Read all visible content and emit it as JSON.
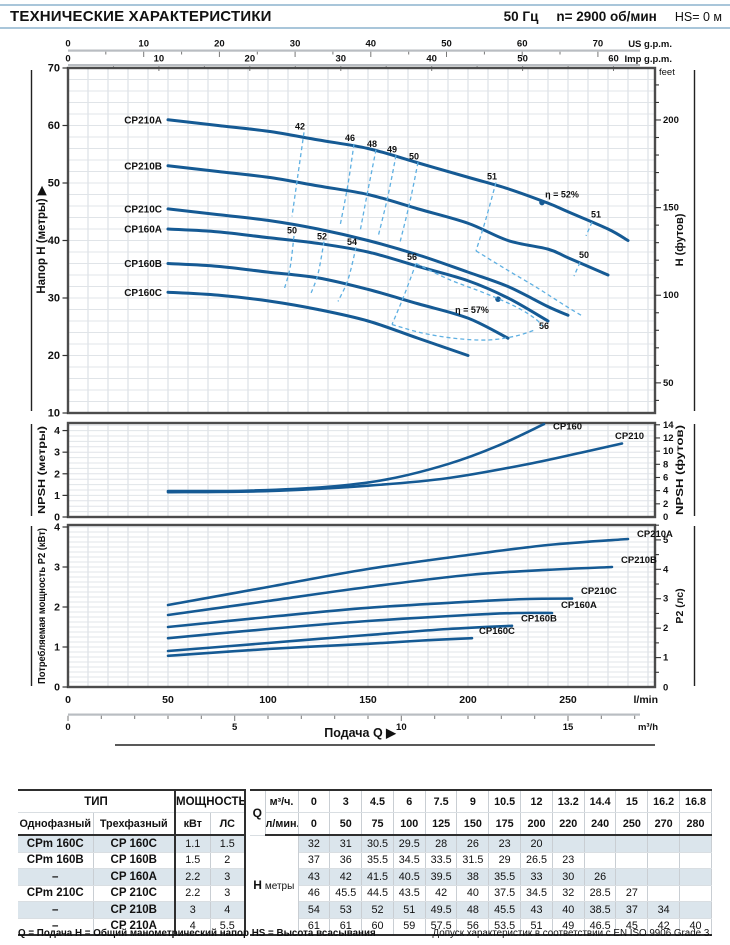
{
  "header": {
    "title": "ТЕХНИЧЕСКИЕ ХАРАКТЕРИСТИКИ",
    "frequency": "50 Гц",
    "speed": "n= 2900  об/мин",
    "suction": "HS= 0 м"
  },
  "chart_data": {
    "type": "line",
    "flow_axis": {
      "us_gpm": {
        "label": "US g.p.m.",
        "ticks": [
          0,
          10,
          20,
          30,
          40,
          50,
          60,
          70
        ],
        "lmin_per_unit": 3.785
      },
      "imp_gpm": {
        "label": "Imp g.p.m.",
        "ticks": [
          0,
          10,
          20,
          30,
          40,
          50,
          60
        ],
        "lmin_per_unit": 4.546
      },
      "lmin": {
        "label": "l/min",
        "ticks": [
          0,
          50,
          100,
          150,
          200,
          250
        ]
      },
      "m3h": {
        "label": "m³/h",
        "ticks": [
          0,
          5,
          10,
          15
        ],
        "lmin_per_unit": 16.667
      },
      "xlabel": "Подача Q  ▶"
    },
    "head_chart": {
      "ylabel_left": "Напор H  (метры)  ▶",
      "ylabel_right": "Н  (футов)",
      "right_unit_label": "feet",
      "x_domain": [
        0,
        293.5
      ],
      "y_domain": [
        10,
        70
      ],
      "yticks": [
        70,
        60,
        50,
        40,
        30,
        20,
        10
      ],
      "right_ticks_ft": [
        50,
        100,
        150,
        200
      ],
      "series": [
        {
          "name": "CP210A",
          "q": [
            50,
            75,
            100,
            125,
            150,
            175,
            200,
            220,
            240,
            250,
            270,
            280
          ],
          "v": [
            61,
            60,
            59,
            57.5,
            56,
            53.5,
            51,
            49,
            46.5,
            45,
            42,
            40
          ]
        },
        {
          "name": "CP210B",
          "q": [
            50,
            75,
            100,
            125,
            150,
            175,
            200,
            220,
            240,
            250,
            270
          ],
          "v": [
            53,
            52,
            51,
            49.5,
            48,
            45.5,
            43,
            40,
            38.5,
            37,
            34
          ]
        },
        {
          "name": "CP210C",
          "q": [
            50,
            75,
            100,
            125,
            150,
            175,
            200,
            220,
            240,
            250
          ],
          "v": [
            45.5,
            44.5,
            43.5,
            42,
            40,
            37.5,
            34.5,
            32,
            28.5,
            27
          ]
        },
        {
          "name": "CP160A",
          "q": [
            50,
            75,
            100,
            125,
            150,
            175,
            200,
            220,
            240
          ],
          "v": [
            42,
            41.5,
            40.5,
            39.5,
            38,
            35.5,
            33,
            30,
            26
          ]
        },
        {
          "name": "CP160B",
          "q": [
            50,
            75,
            100,
            125,
            150,
            175,
            200,
            220
          ],
          "v": [
            36,
            35.5,
            34.5,
            33.5,
            31.5,
            29,
            26.5,
            23
          ]
        },
        {
          "name": "CP160C",
          "q": [
            50,
            75,
            100,
            125,
            150,
            175,
            200
          ],
          "v": [
            31,
            30.5,
            29.5,
            28,
            26,
            23,
            20
          ]
        }
      ],
      "efficiency_lines": [
        {
          "label": "42",
          "at": [
            116,
            59.3
          ],
          "pts": [
            [
              118,
              58.8
            ],
            [
              115,
              51.5
            ],
            [
              112,
              44.2
            ]
          ]
        },
        {
          "label": "46",
          "at": [
            141,
            57.3
          ],
          "pts": [
            [
              143,
              56.8
            ],
            [
              140,
              49.8
            ],
            [
              136,
              42.5
            ]
          ]
        },
        {
          "label": "48",
          "at": [
            152,
            56.3
          ],
          "pts": [
            [
              154,
              55.8
            ],
            [
              150,
              48.8
            ],
            [
              146,
              41.5
            ]
          ]
        },
        {
          "label": "49",
          "at": [
            162,
            55.3
          ],
          "pts": [
            [
              164,
              54.8
            ],
            [
              160,
              47.8
            ],
            [
              155,
              40.6
            ]
          ]
        },
        {
          "label": "50",
          "at": [
            173,
            54.1
          ],
          "pts": [
            [
              175,
              53.6
            ],
            [
              171,
              46.8
            ],
            [
              166,
              39.7
            ]
          ]
        },
        {
          "label": "51",
          "at": [
            212,
            50.6
          ],
          "pts": [
            [
              214,
              50.1
            ],
            [
              209,
              43.8
            ],
            [
              204,
              38.2
            ]
          ]
        },
        {
          "label": "η = 52%",
          "at": [
            247,
            47.5
          ],
          "dot": [
            237,
            46.6
          ],
          "pts": []
        },
        {
          "label": "51",
          "at": [
            264,
            44.0
          ],
          "pts": [
            [
              262,
              43.2
            ],
            [
              259,
              40.8
            ]
          ]
        },
        {
          "label": "50",
          "at": [
            258,
            37.0
          ],
          "pts": [
            [
              256,
              36.2
            ],
            [
              253,
              33.8
            ]
          ]
        },
        {
          "label": "",
          "at": null,
          "pts": [
            [
              204,
              38.2
            ],
            [
              219,
              35.0
            ],
            [
              234,
              31.9
            ],
            [
              248,
              28.8
            ],
            [
              257,
              26.9
            ]
          ]
        },
        {
          "label": "50",
          "at": [
            112,
            41.2
          ],
          "pts": [
            [
              113,
              40.8
            ],
            [
              111,
              35.2
            ],
            [
              108,
              31.4
            ]
          ]
        },
        {
          "label": "52",
          "at": [
            127,
            40.2
          ],
          "pts": [
            [
              128,
              39.8
            ],
            [
              125,
              34.2
            ],
            [
              121,
              30.4
            ]
          ]
        },
        {
          "label": "54",
          "at": [
            142,
            39.2
          ],
          "pts": [
            [
              144,
              38.8
            ],
            [
              140,
              33.2
            ],
            [
              135,
              29.4
            ]
          ]
        },
        {
          "label": "56",
          "at": [
            172,
            36.6
          ],
          "pts": [
            [
              174,
              36.0
            ],
            [
              168,
              30.4
            ],
            [
              162,
              25.4
            ]
          ]
        },
        {
          "label": "η = 57%",
          "at": [
            202,
            27.4
          ],
          "dot": [
            215,
            29.8
          ],
          "pts": []
        },
        {
          "label": "56",
          "at": [
            238,
            24.6
          ],
          "pts": []
        },
        {
          "label": "",
          "at": null,
          "pts": [
            [
              174,
              36.0
            ],
            [
              190,
              33.3
            ],
            [
              205,
              31.3
            ],
            [
              215,
              29.9
            ],
            [
              226,
              28.1
            ],
            [
              234,
              26.3
            ],
            [
              237,
              25.1
            ]
          ]
        },
        {
          "label": "",
          "at": null,
          "pts": [
            [
              162,
              25.4
            ],
            [
              176,
              24.0
            ],
            [
              193,
              23.0
            ],
            [
              210,
              22.7
            ],
            [
              224,
              23.4
            ],
            [
              233,
              24.4
            ]
          ]
        }
      ]
    },
    "npsh_chart": {
      "ylabel_left": "NPSH  (метры)",
      "ylabel_right": "NPSH  (футов)",
      "y_domain": [
        0,
        4.35
      ],
      "yticks": [
        4,
        3,
        2,
        1,
        0
      ],
      "right_ticks_ft": [
        2,
        4,
        6,
        8,
        10,
        12,
        14
      ],
      "series": [
        {
          "name": "CP160",
          "q": [
            50,
            90,
            130,
            160,
            190,
            215,
            238
          ],
          "v": [
            1.2,
            1.22,
            1.4,
            1.75,
            2.45,
            3.3,
            4.3
          ],
          "label_at": [
            241,
            4.05
          ]
        },
        {
          "name": "CP210",
          "q": [
            50,
            100,
            150,
            190,
            230,
            260,
            277
          ],
          "v": [
            1.15,
            1.2,
            1.45,
            1.8,
            2.45,
            3.05,
            3.4
          ],
          "label_at": [
            272,
            3.62
          ]
        }
      ]
    },
    "p2_chart": {
      "ylabel_left": "Потребляемая мощность P2  (кВт)",
      "ylabel_right": "P2  (лс)",
      "y_domain": [
        0,
        4.05
      ],
      "yticks": [
        4,
        3,
        2,
        1,
        0
      ],
      "right_ticks_hp": [
        1,
        2,
        3,
        4,
        5
      ],
      "series": [
        {
          "name": "CP210A",
          "q": [
            50,
            100,
            150,
            200,
            240,
            280
          ],
          "v": [
            2.05,
            2.5,
            2.95,
            3.3,
            3.55,
            3.7
          ],
          "label_at": [
            283,
            3.75
          ]
        },
        {
          "name": "CP210B",
          "q": [
            50,
            100,
            150,
            200,
            240,
            272
          ],
          "v": [
            1.8,
            2.15,
            2.5,
            2.8,
            2.93,
            3.0
          ],
          "label_at": [
            275,
            3.1
          ]
        },
        {
          "name": "CP210C",
          "q": [
            50,
            100,
            150,
            200,
            230,
            252
          ],
          "v": [
            1.5,
            1.75,
            1.98,
            2.13,
            2.2,
            2.21
          ],
          "label_at": [
            255,
            2.33
          ]
        },
        {
          "name": "CP160A",
          "q": [
            50,
            100,
            150,
            200,
            225,
            242
          ],
          "v": [
            1.22,
            1.45,
            1.65,
            1.8,
            1.85,
            1.85
          ],
          "label_at": [
            245,
            1.98
          ]
        },
        {
          "name": "CP160B",
          "q": [
            50,
            100,
            150,
            190,
            222
          ],
          "v": [
            0.9,
            1.1,
            1.3,
            1.45,
            1.53
          ],
          "label_at": [
            225,
            1.64
          ]
        },
        {
          "name": "CP160C",
          "q": [
            50,
            100,
            150,
            180,
            202
          ],
          "v": [
            0.78,
            0.95,
            1.08,
            1.17,
            1.22
          ],
          "label_at": [
            204,
            1.33
          ]
        }
      ]
    }
  },
  "table": {
    "type_header": "ТИП",
    "power_header": "МОЩНОСТЬ",
    "col_single": "Однофазный",
    "col_three": "Трехфазный",
    "col_kw": "кВт",
    "col_hp": "ЛС",
    "q_label": "Q",
    "unit_top": "м³/ч.",
    "unit_bottom": "л/мин.",
    "h_label": "Н",
    "h_unit": "метры",
    "flow_m3h": [
      "0",
      "3",
      "4.5",
      "6",
      "7.5",
      "9",
      "10.5",
      "12",
      "13.2",
      "14.4",
      "15",
      "16.2",
      "16.8"
    ],
    "flow_lmin": [
      "0",
      "50",
      "75",
      "100",
      "125",
      "150",
      "175",
      "200",
      "220",
      "240",
      "250",
      "270",
      "280"
    ],
    "rows": [
      {
        "single": "CPm 160C",
        "three": "CP 160C",
        "kw": "1.1",
        "hp": "1.5",
        "h": [
          "32",
          "31",
          "30.5",
          "29.5",
          "28",
          "26",
          "23",
          "20",
          "",
          "",
          "",
          "",
          ""
        ]
      },
      {
        "single": "CPm 160B",
        "three": "CP 160B",
        "kw": "1.5",
        "hp": "2",
        "h": [
          "37",
          "36",
          "35.5",
          "34.5",
          "33.5",
          "31.5",
          "29",
          "26.5",
          "23",
          "",
          "",
          "",
          ""
        ]
      },
      {
        "single": "–",
        "three": "CP 160A",
        "kw": "2.2",
        "hp": "3",
        "h": [
          "43",
          "42",
          "41.5",
          "40.5",
          "39.5",
          "38",
          "35.5",
          "33",
          "30",
          "26",
          "",
          "",
          ""
        ]
      },
      {
        "single": "CPm 210C",
        "three": "CP 210C",
        "kw": "2.2",
        "hp": "3",
        "h": [
          "46",
          "45.5",
          "44.5",
          "43.5",
          "42",
          "40",
          "37.5",
          "34.5",
          "32",
          "28.5",
          "27",
          "",
          ""
        ]
      },
      {
        "single": "–",
        "three": "CP 210B",
        "kw": "3",
        "hp": "4",
        "h": [
          "54",
          "53",
          "52",
          "51",
          "49.5",
          "48",
          "45.5",
          "43",
          "40",
          "38.5",
          "37",
          "34",
          ""
        ]
      },
      {
        "single": "–",
        "three": "CP 210A",
        "kw": "4",
        "hp": "5.5",
        "h": [
          "61",
          "61",
          "60",
          "59",
          "57.5",
          "56",
          "53.5",
          "51",
          "49",
          "46.5",
          "45",
          "42",
          "40"
        ]
      }
    ]
  },
  "footnotes": {
    "left": "Q = Подача    H = Общий манометрический напор    HS = Высота всасывания",
    "right": "Допуск характеристик в соответствии с EN ISO 9906 Grade 3."
  },
  "colors": {
    "curve": "#155a94",
    "efficiency_dash": "#5fb0e2",
    "accent_rule": "#a9c6da"
  }
}
